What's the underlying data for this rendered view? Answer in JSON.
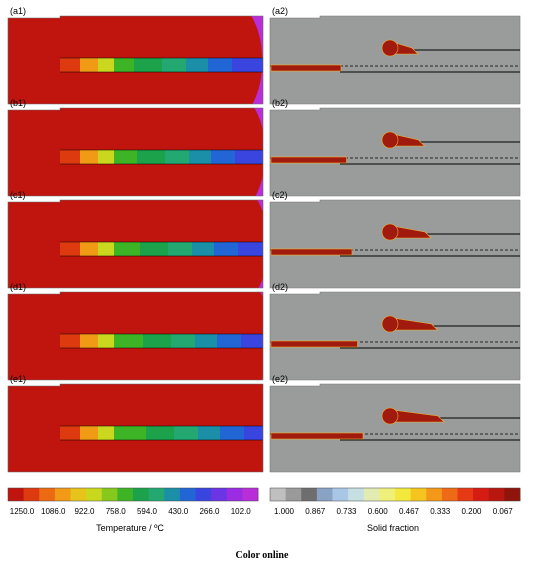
{
  "figure": {
    "panels_left": [
      {
        "label": "(a1)",
        "hot_extent": 0.0
      },
      {
        "label": "(b1)",
        "hot_extent": 0.25
      },
      {
        "label": "(c1)",
        "hot_extent": 0.5
      },
      {
        "label": "(d1)",
        "hot_extent": 0.75
      },
      {
        "label": "(e1)",
        "hot_extent": 1.0
      }
    ],
    "panels_right": [
      {
        "label": "(a2)",
        "melt_fraction": 0.0
      },
      {
        "label": "(b2)",
        "melt_fraction": 0.25
      },
      {
        "label": "(c2)",
        "melt_fraction": 0.5
      },
      {
        "label": "(d2)",
        "melt_fraction": 0.75
      },
      {
        "label": "(e2)",
        "melt_fraction": 1.0
      }
    ],
    "temperature_scale": {
      "title": "Temperature / ºC",
      "ticks": [
        "1250.0",
        "1086.0",
        "922.0",
        "758.0",
        "594.0",
        "430.0",
        "266.0",
        "102.0"
      ],
      "colors": [
        "#c0150e",
        "#dd3a10",
        "#ec6a12",
        "#f09a16",
        "#e6c41c",
        "#c9d81e",
        "#86c81e",
        "#3cb426",
        "#1ca24a",
        "#24a872",
        "#1b8fa8",
        "#2266d6",
        "#3a45e0",
        "#6b34e4",
        "#9a2de2",
        "#b82ed8"
      ]
    },
    "solid_fraction_scale": {
      "title": "Solid fraction",
      "ticks": [
        "1.000",
        "0.867",
        "0.733",
        "0.600",
        "0.467",
        "0.333",
        "0.200",
        "0.067"
      ],
      "colors": [
        "#bfbfbf",
        "#9a9a9a",
        "#6e6e6e",
        "#89a3c4",
        "#a9c6e6",
        "#c5dfe2",
        "#e2ecb2",
        "#eef07a",
        "#f3e83c",
        "#f5c41e",
        "#f39818",
        "#ef6a16",
        "#e53a14",
        "#d51c12",
        "#b8160e",
        "#8e140c"
      ]
    },
    "caption": "Color online"
  },
  "colors": {
    "background_gray": "#9a9c9c",
    "melt": "#a01a0e",
    "melt_edge": "#f0b030"
  }
}
